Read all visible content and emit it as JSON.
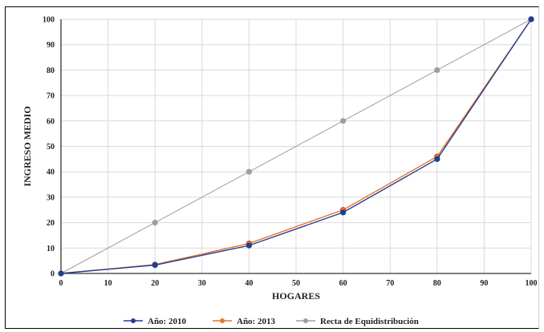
{
  "chart_data": {
    "type": "line",
    "title": "",
    "xlabel": "HOGARES",
    "ylabel": "INGRESO MEDIO",
    "xlim": [
      0,
      100
    ],
    "ylim": [
      0,
      100
    ],
    "xticks": [
      0,
      10,
      20,
      30,
      40,
      50,
      60,
      70,
      80,
      90,
      100
    ],
    "yticks": [
      0,
      10,
      20,
      30,
      40,
      50,
      60,
      70,
      80,
      90,
      100
    ],
    "x": [
      0,
      20,
      40,
      60,
      80,
      100
    ],
    "grid": true,
    "legend_position": "bottom",
    "series": [
      {
        "name": "Año: 2010",
        "values": [
          0,
          3.3,
          11.0,
          24.0,
          45.0,
          100
        ],
        "color": "#1f3f8f"
      },
      {
        "name": "Año: 2013",
        "values": [
          0,
          3.5,
          11.8,
          25.0,
          46.0,
          100
        ],
        "color": "#e8762c"
      },
      {
        "name": "Recta de Equidistribución",
        "values": [
          0,
          20,
          40,
          60,
          80,
          100
        ],
        "color": "#9e9e9e"
      }
    ]
  }
}
